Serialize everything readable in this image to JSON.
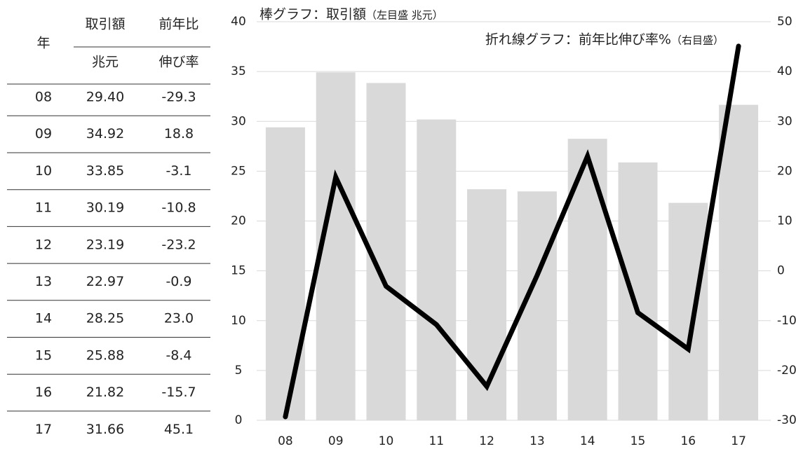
{
  "table": {
    "header": {
      "year": "年",
      "amount": "取引額",
      "amount_unit": "兆元",
      "growth": "前年比",
      "growth_unit": "伸び率"
    },
    "rows": [
      [
        "08",
        "29.40",
        "-29.3"
      ],
      [
        "09",
        "34.92",
        "18.8"
      ],
      [
        "10",
        "33.85",
        "-3.1"
      ],
      [
        "11",
        "30.19",
        "-10.8"
      ],
      [
        "12",
        "23.19",
        "-23.2"
      ],
      [
        "13",
        "22.97",
        "-0.9"
      ],
      [
        "14",
        "28.25",
        "23.0"
      ],
      [
        "15",
        "25.88",
        "-8.4"
      ],
      [
        "16",
        "21.82",
        "-15.7"
      ],
      [
        "17",
        "31.66",
        "45.1"
      ]
    ]
  },
  "chart_data": {
    "type": "bar_line",
    "title": "棒グラフ：取引額",
    "title_note": "（左目盛 兆元）",
    "subtitle": "折れ線グラフ：前年比伸び率%",
    "subtitle_note": "（右目盛）",
    "categories": [
      "08",
      "09",
      "10",
      "11",
      "12",
      "13",
      "14",
      "15",
      "16",
      "17"
    ],
    "series": [
      {
        "type": "bar",
        "color": "#d9d9d9",
        "values": [
          29.4,
          34.92,
          33.85,
          30.19,
          23.19,
          22.97,
          28.25,
          25.88,
          21.82,
          31.66
        ]
      },
      {
        "type": "line",
        "color": "#000000",
        "axis": "y2",
        "values": [
          -29.3,
          18.8,
          -3.1,
          -10.8,
          -23.2,
          -0.9,
          23.0,
          -8.4,
          -15.7,
          45.1
        ]
      }
    ],
    "ylim": [
      0,
      40
    ],
    "yticks": [
      0,
      5,
      10,
      15,
      20,
      25,
      30,
      35,
      40
    ],
    "y2lim": [
      -30,
      50
    ],
    "y2ticks": [
      -30,
      -20,
      -10,
      0,
      10,
      20,
      30,
      40,
      50
    ],
    "grid": true
  }
}
